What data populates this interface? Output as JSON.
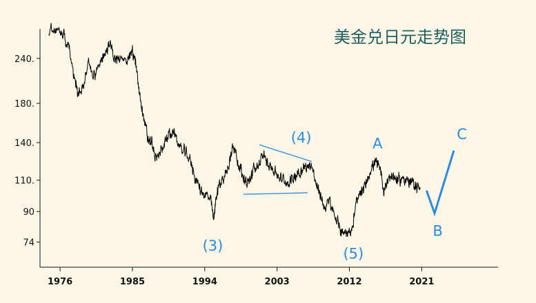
{
  "chart_data": {
    "type": "line",
    "title": "美金兑日元走势图",
    "xlabel": "",
    "ylabel": "",
    "scale_y": "log",
    "xlim": [
      1973.5,
      2030.5
    ],
    "ylim": [
      63,
      290
    ],
    "x_ticks": [
      1976,
      1985,
      1994,
      2003,
      2012,
      2021
    ],
    "x_tick_labels": [
      "1976",
      "1985",
      "1994",
      "2003",
      "2012",
      "2021"
    ],
    "y_ticks": [
      74,
      90,
      110,
      140,
      180,
      240
    ],
    "y_tick_labels": [
      "74",
      "90",
      "110.",
      "140.",
      "180.",
      "240."
    ],
    "grid": false,
    "series": [
      {
        "color": "#000000",
        "x": [
          1974.6,
          1975.5,
          1976.3,
          1977.0,
          1977.6,
          1978.2,
          1978.8,
          1979.5,
          1980.2,
          1981.0,
          1981.5,
          1982.2,
          1982.8,
          1983.5,
          1984.3,
          1985.0,
          1985.4,
          1985.9,
          1986.4,
          1986.9,
          1987.4,
          1987.9,
          1988.5,
          1989.0,
          1989.6,
          1990.3,
          1990.9,
          1991.5,
          1992.2,
          1992.8,
          1993.4,
          1994.0,
          1994.7,
          1995.1,
          1995.3,
          1995.8,
          1996.4,
          1997.0,
          1997.5,
          1998.1,
          1998.6,
          1999.0,
          1999.5,
          2000.0,
          2000.7,
          2001.3,
          2001.9,
          2002.5,
          2003.1,
          2003.7,
          2004.3,
          2004.9,
          2005.5,
          2006.1,
          2006.7,
          2007.3,
          2007.9,
          2008.4,
          2008.9,
          2009.5,
          2010.1,
          2010.7,
          2011.2,
          2011.8,
          2012.3,
          2012.8,
          2013.3,
          2013.8,
          2014.3,
          2014.8,
          2015.3,
          2015.8,
          2016.3,
          2016.8,
          2017.3,
          2017.8,
          2018.3,
          2018.8,
          2019.3,
          2019.8,
          2020.3,
          2020.8
        ],
        "values": [
          285,
          292,
          282,
          265,
          225,
          190,
          196,
          235,
          215,
          230,
          250,
          262,
          240,
          236,
          242,
          250,
          232,
          190,
          165,
          143,
          140,
          125,
          132,
          140,
          148,
          148,
          135,
          132,
          125,
          112,
          104,
          100,
          98,
          85,
          94,
          108,
          112,
          120,
          140,
          125,
          115,
          110,
          108,
          116,
          122,
          128,
          124,
          118,
          113,
          110,
          108,
          111,
          115,
          118,
          120,
          122,
          106,
          100,
          92,
          96,
          88,
          82,
          78,
          80,
          79,
          94,
          100,
          104,
          112,
          120,
          123,
          118,
          102,
          112,
          113,
          111,
          110,
          112,
          109,
          108,
          106,
          104
        ]
      }
    ],
    "wave_path": {
      "color": "#2a8ce0",
      "x": [
        2021.6,
        2022.6,
        2025.0
      ],
      "values": [
        103,
        89,
        133
      ]
    },
    "trendlines": [
      {
        "color": "#2a8ce0",
        "x": [
          1998.8,
          2006.8
        ],
        "values": [
          100.5,
          101.5
        ]
      },
      {
        "color": "#2a8ce0",
        "x": [
          2000.8,
          2007.3
        ],
        "values": [
          138,
          124
        ]
      }
    ],
    "annotations": [
      {
        "text": "(3)",
        "x": 1995.0,
        "y": 70
      },
      {
        "text": "(4)",
        "x": 2006.0,
        "y": 140
      },
      {
        "text": "(5)",
        "x": 2012.5,
        "y": 66.5
      },
      {
        "text": "A",
        "x": 2015.5,
        "y": 135
      },
      {
        "text": "B",
        "x": 2023.0,
        "y": 77
      },
      {
        "text": "C",
        "x": 2026.0,
        "y": 143
      }
    ]
  }
}
